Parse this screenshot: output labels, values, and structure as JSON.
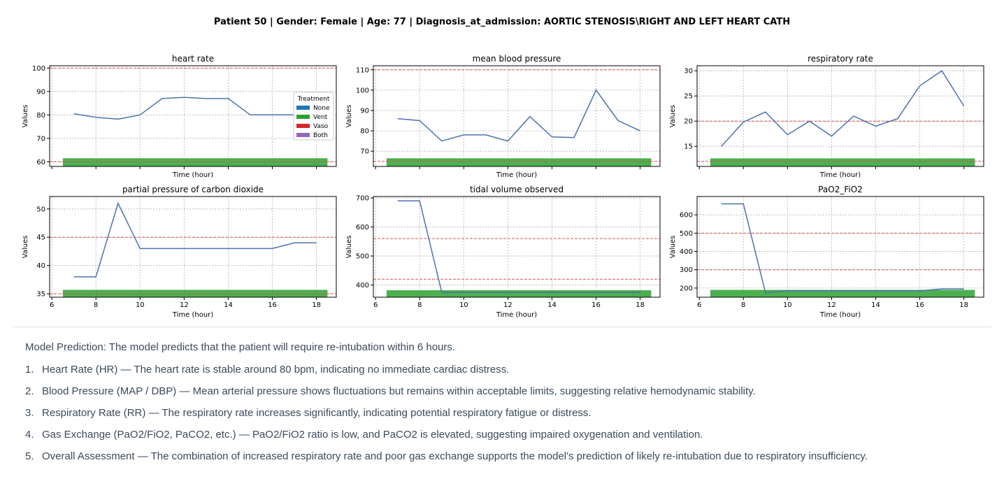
{
  "header": {
    "title": "Patient 50 | Gender: Female | Age: 77 | Diagnosis_at_admission: AORTIC STENOSIS\\RIGHT AND LEFT HEART CATH"
  },
  "colors": {
    "line": "#4c72b0",
    "threshold": "#d9534f",
    "vent_bar": "#4caf50",
    "grid": "#b0b0b0"
  },
  "legend": {
    "title": "Treatment",
    "items": [
      {
        "label": "None",
        "color": "#1f77b4"
      },
      {
        "label": "Vent",
        "color": "#2ca02c"
      },
      {
        "label": "Vaso",
        "color": "#d62728"
      },
      {
        "label": "Both",
        "color": "#9467bd"
      }
    ]
  },
  "chart_data": [
    {
      "type": "line",
      "title": "heart rate",
      "xlabel": "Time (hour)",
      "ylabel": "Values",
      "xlim": [
        5.9,
        18.9
      ],
      "ylim": [
        58,
        101
      ],
      "xticks": [
        6,
        8,
        10,
        12,
        14,
        16,
        18
      ],
      "yticks": [
        60,
        70,
        80,
        90,
        100
      ],
      "show_x_tick_labels": false,
      "grid": true,
      "legend": "right",
      "x": [
        7,
        8,
        9,
        10,
        11,
        12,
        13,
        14,
        15,
        16,
        17,
        18
      ],
      "values": [
        80.5,
        79,
        78.2,
        80,
        87,
        87.5,
        87,
        87,
        80,
        80,
        80,
        80
      ],
      "thresholds": [
        60,
        100
      ],
      "treatment": {
        "label": "Vent",
        "x_start": 6.5,
        "x_end": 18.5,
        "y_bottom": 58,
        "y_top": 61.5
      }
    },
    {
      "type": "line",
      "title": "mean blood pressure",
      "xlabel": "Time (hour)",
      "ylabel": "Values",
      "xlim": [
        5.9,
        18.9
      ],
      "ylim": [
        62.5,
        112
      ],
      "xticks": [
        6,
        8,
        10,
        12,
        14,
        16,
        18
      ],
      "yticks": [
        70,
        80,
        90,
        100,
        110
      ],
      "show_x_tick_labels": false,
      "grid": true,
      "x": [
        7,
        8,
        9,
        10,
        11,
        12,
        13,
        14,
        15,
        16,
        17,
        18
      ],
      "values": [
        86,
        85,
        75,
        78,
        78,
        75,
        87,
        77,
        76.7,
        100,
        85,
        80
      ],
      "thresholds": [
        65,
        110
      ],
      "treatment": {
        "label": "Vent",
        "x_start": 6.5,
        "x_end": 18.5,
        "y_bottom": 62.5,
        "y_top": 66.5
      }
    },
    {
      "type": "line",
      "title": "respiratory rate",
      "xlabel": "Time (hour)",
      "ylabel": "Values",
      "xlim": [
        5.9,
        18.9
      ],
      "ylim": [
        11,
        31
      ],
      "xticks": [
        6,
        8,
        10,
        12,
        14,
        16,
        18
      ],
      "yticks": [
        15,
        20,
        25,
        30
      ],
      "show_x_tick_labels": false,
      "grid": true,
      "x": [
        7,
        8,
        9,
        10,
        11,
        12,
        13,
        14,
        15,
        16,
        17,
        18
      ],
      "values": [
        15,
        19.8,
        21.8,
        17.3,
        20,
        17,
        21,
        19,
        20.5,
        27,
        30,
        23
      ],
      "thresholds": [
        12,
        20
      ],
      "treatment": {
        "label": "Vent",
        "x_start": 6.5,
        "x_end": 18.5,
        "y_bottom": 11,
        "y_top": 12.6
      }
    },
    {
      "type": "line",
      "title": "partial pressure of carbon dioxide",
      "xlabel": "Time (hour)",
      "ylabel": "Values",
      "xlim": [
        5.9,
        18.9
      ],
      "ylim": [
        34.4,
        52.2
      ],
      "xticks": [
        6,
        8,
        10,
        12,
        14,
        16,
        18
      ],
      "yticks": [
        35,
        40,
        45,
        50
      ],
      "show_x_tick_labels": true,
      "grid": true,
      "x": [
        7,
        8,
        9,
        10,
        11,
        12,
        13,
        14,
        15,
        16,
        17,
        18
      ],
      "values": [
        38,
        38,
        51,
        43,
        43,
        43,
        43,
        43,
        43,
        43,
        44,
        44
      ],
      "thresholds": [
        35,
        45
      ],
      "treatment": {
        "label": "Vent",
        "x_start": 6.5,
        "x_end": 18.5,
        "y_bottom": 34.4,
        "y_top": 35.7
      }
    },
    {
      "type": "line",
      "title": "tidal volume observed",
      "xlabel": "Time (hour)",
      "ylabel": "Values",
      "xlim": [
        5.9,
        18.9
      ],
      "ylim": [
        358,
        705
      ],
      "xticks": [
        6,
        8,
        10,
        12,
        14,
        16,
        18
      ],
      "yticks": [
        400,
        500,
        600,
        700
      ],
      "show_x_tick_labels": true,
      "grid": true,
      "x": [
        7,
        8,
        9,
        10,
        11,
        12,
        13,
        14,
        15,
        16,
        17,
        18
      ],
      "values": [
        690,
        690,
        375,
        375,
        375,
        375,
        375,
        375,
        375,
        375,
        375,
        375
      ],
      "thresholds": [
        420,
        560
      ],
      "treatment": {
        "label": "Vent",
        "x_start": 6.5,
        "x_end": 18.5,
        "y_bottom": 358,
        "y_top": 382
      }
    },
    {
      "type": "line",
      "title": "PaO2_FiO2",
      "xlabel": "Time (hour)",
      "ylabel": "Values",
      "xlim": [
        5.9,
        18.9
      ],
      "ylim": [
        150,
        700
      ],
      "xticks": [
        6,
        8,
        10,
        12,
        14,
        16,
        18
      ],
      "yticks": [
        200,
        300,
        400,
        500,
        600
      ],
      "show_x_tick_labels": true,
      "grid": true,
      "x": [
        7,
        8,
        9,
        10,
        11,
        12,
        13,
        14,
        15,
        16,
        17,
        18
      ],
      "values": [
        660,
        660,
        175,
        185,
        185,
        185,
        185,
        185,
        185,
        185,
        195,
        195
      ],
      "thresholds": [
        300,
        500
      ],
      "treatment": {
        "label": "Vent",
        "x_start": 6.5,
        "x_end": 18.5,
        "y_bottom": 150,
        "y_top": 190
      }
    }
  ],
  "report": {
    "prediction": "Model Prediction: The model predicts that the patient will require re-intubation within 6 hours.",
    "findings": [
      {
        "num": "1.",
        "text": "Heart Rate (HR) — The heart rate is stable around 80 bpm, indicating no immediate cardiac distress."
      },
      {
        "num": "2.",
        "text": "Blood Pressure (MAP / DBP) — Mean arterial pressure shows fluctuations but remains within acceptable limits, suggesting relative hemodynamic stability."
      },
      {
        "num": "3.",
        "text": "Respiratory Rate (RR) — The respiratory rate increases significantly, indicating potential respiratory fatigue or distress."
      },
      {
        "num": "4.",
        "text": "Gas Exchange (PaO2/FiO2, PaCO2, etc.) — PaO2/FiO2 ratio is low, and PaCO2 is elevated, suggesting impaired oxygenation and ventilation."
      },
      {
        "num": "5.",
        "text": "Overall Assessment — The combination of increased respiratory rate and poor gas exchange supports the model's prediction of likely re-intubation due to respiratory insufficiency."
      }
    ]
  }
}
